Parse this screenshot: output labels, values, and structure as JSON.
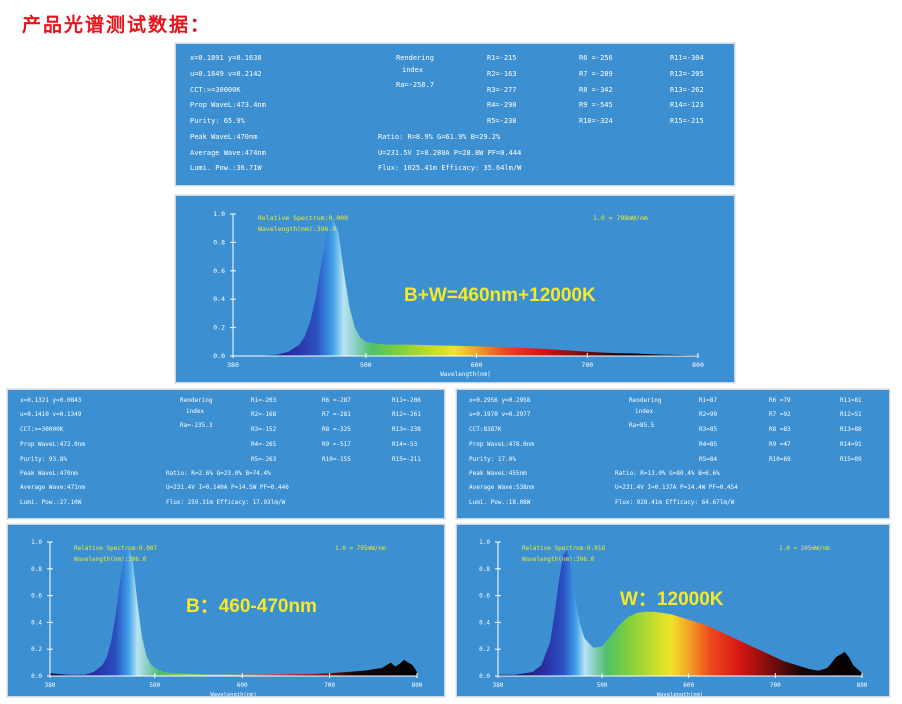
{
  "page_title": "产品光谱测试数据：",
  "colors": {
    "panel_bg": "#3c8fd1",
    "title_red": "#e8141c",
    "annotation_yellow": "#f1ec2a"
  },
  "panels": [
    {
      "params": {
        "xy": "x=0.1891 y=0.1638",
        "uv": "u=0.1649 v=0.2142",
        "cct": "CCT:>=30000K",
        "prop": "Prop WaveL:473.4nm",
        "purity": "Purity:  65.9%",
        "peak": "Peak WaveL:470nm",
        "avg": "Average Wave:474nm",
        "lumi": "Lumi. Pow.:36.71W",
        "render_1": "Rendering",
        "render_2": "index",
        "ra": "Ra=-258.7",
        "ratio": "Ratio: R=8.9% G=61.9% B=29.2%",
        "elec": "U=231.5V I=0.280A P=28.8W PF=0.444",
        "flux": "Flux: 1025.41m Efficacy: 35.64lm/W",
        "r": [
          "R1=-215",
          "R2=-163",
          "R3=-277",
          "R4=-290",
          "R5=-238",
          "R6 =-256",
          "R7 =-289",
          "R8 =-342",
          "R9 =-545",
          "R10=-324",
          "R11=-304",
          "R12=-205",
          "R13=-262",
          "R14=-123",
          "R15=-215"
        ]
      },
      "chart_data": {
        "type": "area",
        "label": "B+W=460nm+12000K",
        "annotation_1": "Relative Spectrum:0.000",
        "annotation_2": "Wavelength(nm):396.0",
        "scale_note": "1.0 = 798mW/nm",
        "xlabel": "Wavelength(nm)",
        "xlim": [
          380,
          800
        ],
        "ylim": [
          0,
          1.0
        ],
        "y_ticks": [
          "0.0",
          "0.2",
          "0.4",
          "0.6",
          "0.8",
          "1.0"
        ],
        "x_ticks": [
          "380",
          "500",
          "600",
          "700",
          "800"
        ],
        "x": [
          380,
          400,
          420,
          430,
          440,
          445,
          450,
          455,
          460,
          465,
          470,
          475,
          480,
          485,
          490,
          495,
          500,
          510,
          520,
          530,
          540,
          550,
          560,
          570,
          580,
          590,
          600,
          610,
          620,
          630,
          640,
          650,
          660,
          670,
          680,
          690,
          700,
          710,
          720,
          730,
          740,
          750,
          760,
          770,
          780,
          790,
          800
        ],
        "y": [
          0.0,
          0.0,
          0.01,
          0.03,
          0.08,
          0.14,
          0.25,
          0.42,
          0.66,
          0.86,
          0.97,
          0.88,
          0.6,
          0.35,
          0.2,
          0.13,
          0.1,
          0.085,
          0.08,
          0.08,
          0.08,
          0.078,
          0.076,
          0.074,
          0.072,
          0.07,
          0.068,
          0.066,
          0.063,
          0.06,
          0.057,
          0.054,
          0.05,
          0.045,
          0.04,
          0.035,
          0.03,
          0.025,
          0.022,
          0.02,
          0.018,
          0.015,
          0.012,
          0.01,
          0.008,
          0.006,
          0.005
        ]
      }
    },
    {
      "params": {
        "xy": "x=0.1321 y=0.0843",
        "uv": "u=0.1410 v=0.1349",
        "cct": "CCT:>=30000K",
        "prop": "Prop WaveL:472.0nm",
        "purity": "Purity:  93.8%",
        "peak": "Peak WaveL:470nm",
        "avg": "Average Wave:471nm",
        "lumi": "Lumi. Pow.:27.10W",
        "render_1": "Rendering",
        "render_2": "index",
        "ra": "Ra=-235.3",
        "ratio": "Ratio: R=2.6% G=23.0% B=74.4%",
        "elec": "U=231.4V I=0.140A P=14.5W PF=0.446",
        "flux": "Flux: 259.31m Efficacy: 17.93lm/W",
        "r": [
          "R1=-203",
          "R2=-168",
          "R3=-152",
          "R4=-265",
          "R5=-263",
          "R6 =-287",
          "R7 =-281",
          "R8 =-325",
          "R9 =-517",
          "R10=-155",
          "R11=-206",
          "R12=-261",
          "R13=-238",
          "R14=-53",
          "R15=-211"
        ]
      },
      "chart_data": {
        "type": "area",
        "label": "B：460-470nm",
        "annotation_1": "Relative Spectrum:0.007",
        "annotation_2": "Wavelength(nm):396.0",
        "scale_note": "1.0 = 795mW/nm",
        "xlabel": "Wavelength(nm)",
        "xlim": [
          380,
          800
        ],
        "ylim": [
          0,
          1.0
        ],
        "y_ticks": [
          "0.0",
          "0.2",
          "0.4",
          "0.6",
          "0.8",
          "1.0"
        ],
        "x_ticks": [
          "380",
          "500",
          "600",
          "700",
          "800"
        ],
        "x": [
          380,
          400,
          420,
          430,
          440,
          445,
          450,
          455,
          460,
          465,
          470,
          475,
          480,
          485,
          490,
          495,
          500,
          510,
          520,
          540,
          560,
          600,
          640,
          680,
          700,
          720,
          740,
          750,
          760,
          765,
          770,
          775,
          780,
          785,
          790,
          795,
          800
        ],
        "y": [
          0.02,
          0.01,
          0.01,
          0.03,
          0.08,
          0.14,
          0.26,
          0.45,
          0.7,
          0.9,
          0.98,
          0.85,
          0.55,
          0.3,
          0.16,
          0.09,
          0.06,
          0.03,
          0.02,
          0.015,
          0.01,
          0.01,
          0.012,
          0.015,
          0.02,
          0.03,
          0.04,
          0.05,
          0.06,
          0.08,
          0.1,
          0.07,
          0.09,
          0.12,
          0.1,
          0.08,
          0.03
        ]
      }
    },
    {
      "params": {
        "xy": "x=0.2956 y=0.2958",
        "uv": "u=0.1970 v=0.2977",
        "cct": "CCT:8387K",
        "prop": "Prop WaveL:478.0nm",
        "purity": "Purity:  17.0%",
        "peak": "Peak WaveL:455nm",
        "avg": "Average Wave:538nm",
        "lumi": "Lumi. Pow.:18.08W",
        "render_1": "Rendering",
        "render_2": "index",
        "ra": "Ra=85.5",
        "ratio": "Ratio: R=13.0% G=80.4% B=6.6%",
        "elec": "U=231.4V I=0.137A P=14.4W PF=0.454",
        "flux": "Flux: 928.41m Efficacy: 64.67lm/W",
        "r": [
          "R1=87",
          "R2=90",
          "R3=85",
          "R4=85",
          "R5=84",
          "R6 =79",
          "R7 =92",
          "R8 =83",
          "R9 =47",
          "R10=69",
          "R11=81",
          "R12=51",
          "R13=88",
          "R14=91",
          "R15=89"
        ]
      },
      "chart_data": {
        "type": "area",
        "label": "W：12000K",
        "annotation_1": "Relative Spectrum:0.018",
        "annotation_2": "Wavelength(nm):396.0",
        "scale_note": "1.0 = 205mW/nm",
        "xlabel": "Wavelength(nm)",
        "xlim": [
          380,
          800
        ],
        "ylim": [
          0,
          1.0
        ],
        "y_ticks": [
          "0.0",
          "0.2",
          "0.4",
          "0.6",
          "0.8",
          "1.0"
        ],
        "x_ticks": [
          "380",
          "500",
          "600",
          "700",
          "800"
        ],
        "x": [
          380,
          400,
          420,
          430,
          440,
          445,
          450,
          455,
          460,
          465,
          470,
          475,
          480,
          490,
          500,
          510,
          520,
          530,
          540,
          550,
          560,
          570,
          580,
          590,
          600,
          610,
          620,
          630,
          640,
          650,
          660,
          670,
          680,
          690,
          700,
          710,
          720,
          730,
          740,
          750,
          760,
          765,
          770,
          775,
          780,
          785,
          790,
          800
        ],
        "y": [
          0.01,
          0.01,
          0.03,
          0.08,
          0.25,
          0.45,
          0.7,
          0.9,
          0.95,
          0.8,
          0.55,
          0.38,
          0.28,
          0.21,
          0.22,
          0.3,
          0.38,
          0.44,
          0.47,
          0.48,
          0.48,
          0.47,
          0.46,
          0.44,
          0.42,
          0.4,
          0.38,
          0.35,
          0.32,
          0.29,
          0.26,
          0.23,
          0.2,
          0.17,
          0.14,
          0.11,
          0.09,
          0.07,
          0.05,
          0.04,
          0.06,
          0.1,
          0.14,
          0.16,
          0.18,
          0.14,
          0.08,
          0.02
        ]
      }
    }
  ]
}
